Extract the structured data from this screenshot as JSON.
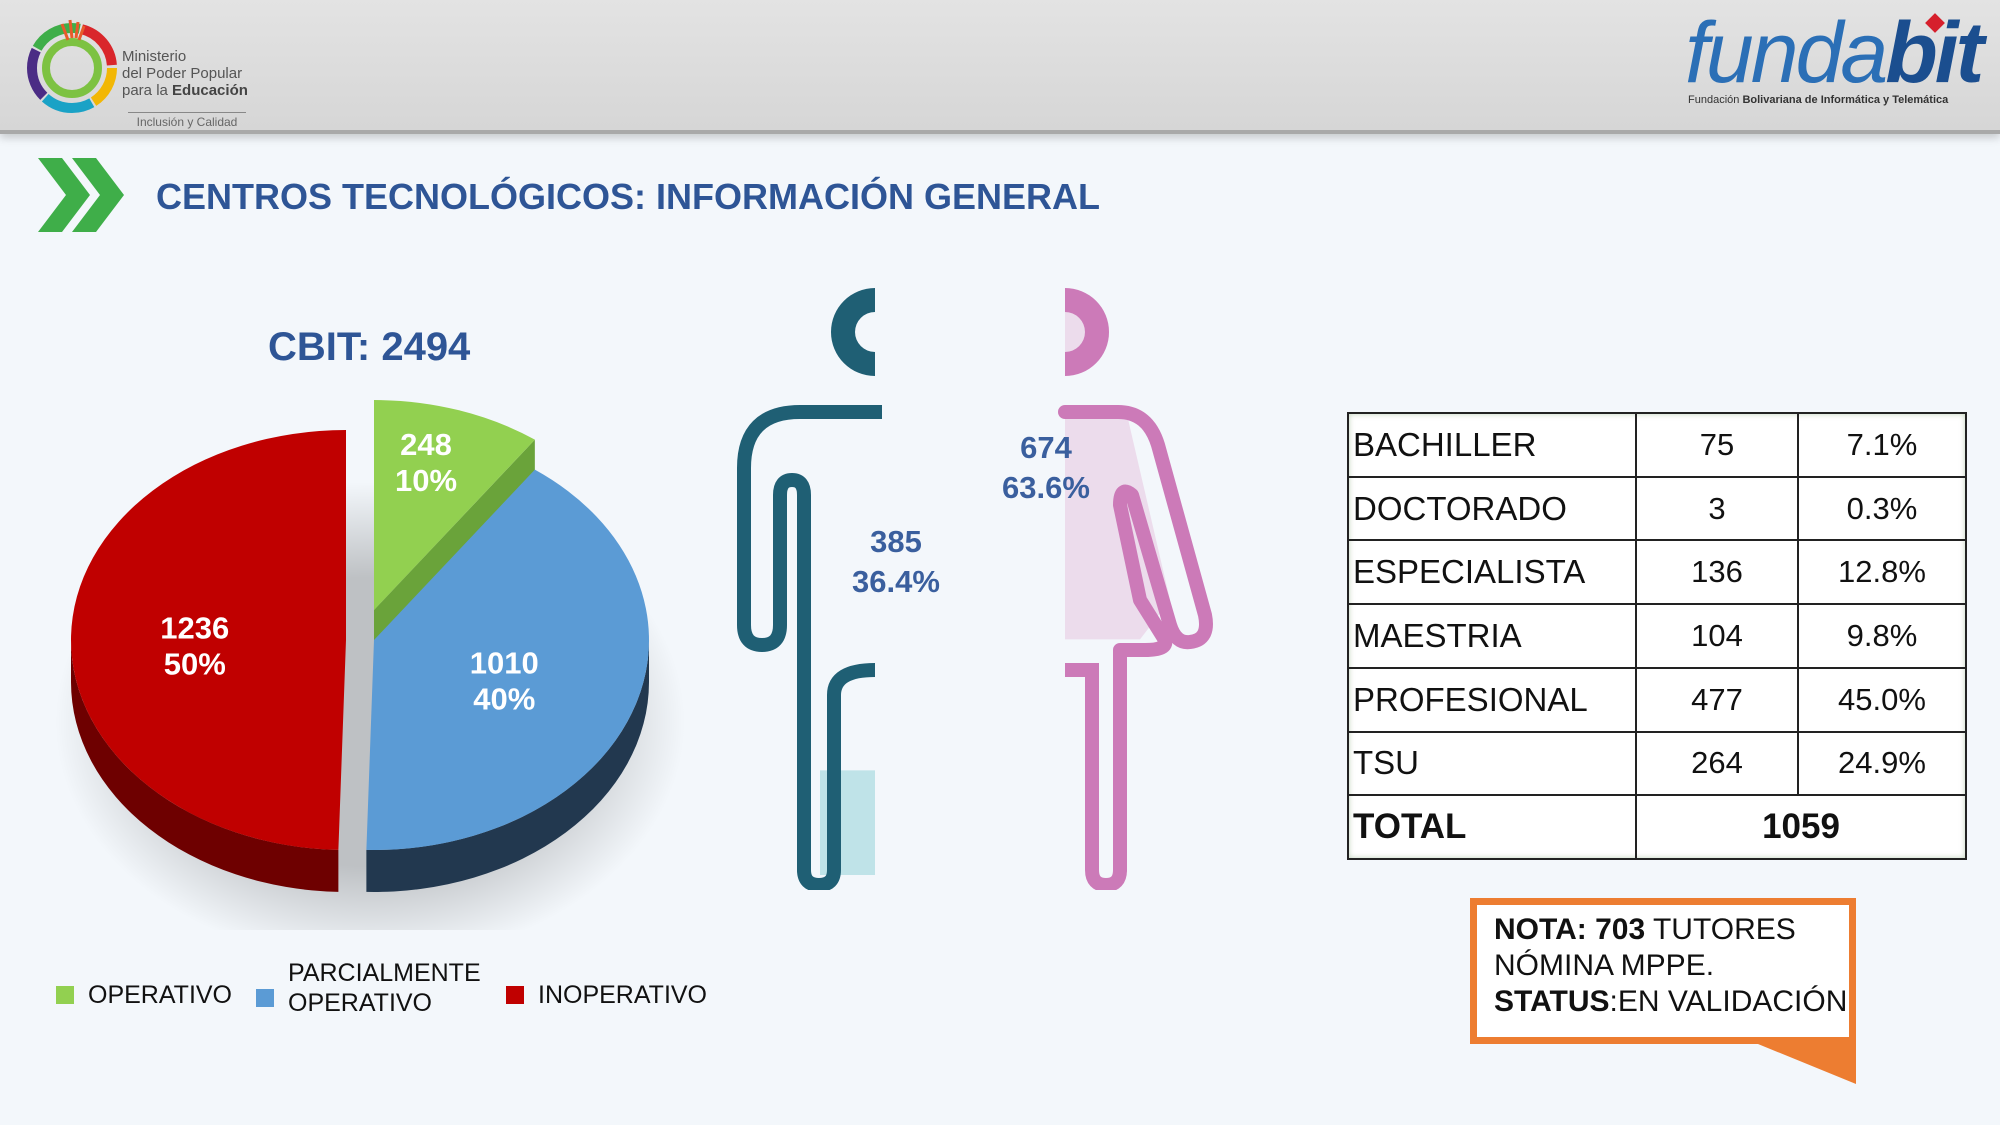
{
  "header": {
    "ministry_lines": [
      "Ministerio",
      "del Poder Popular",
      "para la"
    ],
    "ministry_bold": "Educación",
    "ministry_slogan": "Inclusión y Calidad",
    "brand_a": "funda",
    "brand_b": "bit",
    "brand_sub_a": "Fundación ",
    "brand_sub_b": "Bolivariana de Informática y Telemática"
  },
  "page_title": "CENTROS TECNOLÓGICOS: INFORMACIÓN GENERAL",
  "colors": {
    "title": "#2e5596",
    "operativo": "#92d050",
    "parcial": "#5b9bd5",
    "inoperativo": "#c00000",
    "male": "#1f5f74",
    "male_fill": "#bfe3e8",
    "female": "#cc7ab8",
    "female_fill": "#ecdcec",
    "note_border": "#ed7d31",
    "table_border": "#3e6b37"
  },
  "chart_data": [
    {
      "type": "pie",
      "title": "CBIT: 2494",
      "series": [
        {
          "name": "OPERATIVO",
          "value": 248,
          "label_value": "248",
          "label_pct": "10%"
        },
        {
          "name": "PARCIALMENTE OPERATIVO",
          "value": 1010,
          "label_value": "1010",
          "label_pct": "40%"
        },
        {
          "name": "INOPERATIVO",
          "value": 1236,
          "label_value": "1236",
          "label_pct": "50%"
        }
      ],
      "legend": [
        "OPERATIVO",
        "PARCIALMENTE OPERATIVO",
        "INOPERATIVO"
      ]
    },
    {
      "type": "bar",
      "categories": [
        "male",
        "female"
      ],
      "values": [
        385,
        674
      ],
      "percents": [
        36.4,
        63.6
      ],
      "labels": [
        {
          "value": "385",
          "pct": "36.4%"
        },
        {
          "value": "674",
          "pct": "63.6%"
        }
      ]
    },
    {
      "type": "table",
      "rows": [
        {
          "label": "BACHILLER",
          "value": "75",
          "pct": "7.1%"
        },
        {
          "label": "DOCTORADO",
          "value": "3",
          "pct": "0.3%"
        },
        {
          "label": "ESPECIALISTA",
          "value": "136",
          "pct": "12.8%"
        },
        {
          "label": "MAESTRIA",
          "value": "104",
          "pct": "9.8%"
        },
        {
          "label": "PROFESIONAL",
          "value": "477",
          "pct": "45.0%"
        },
        {
          "label": "TSU",
          "value": "264",
          "pct": "24.9%"
        }
      ],
      "total_label": "TOTAL",
      "total_value": "1059"
    }
  ],
  "legend_labels": {
    "operativo": "OPERATIVO",
    "parcial_1": "PARCIALMENTE",
    "parcial_2": "OPERATIVO",
    "inoperativo": "INOPERATIVO"
  },
  "note": {
    "nota_label": "NOTA:",
    "nota_value": "703",
    "nota_rest": " TUTORES",
    "line2": "NÓMINA MPPE.",
    "status_label": "STATUS",
    "status_value": ":EN VALIDACIÓN"
  }
}
